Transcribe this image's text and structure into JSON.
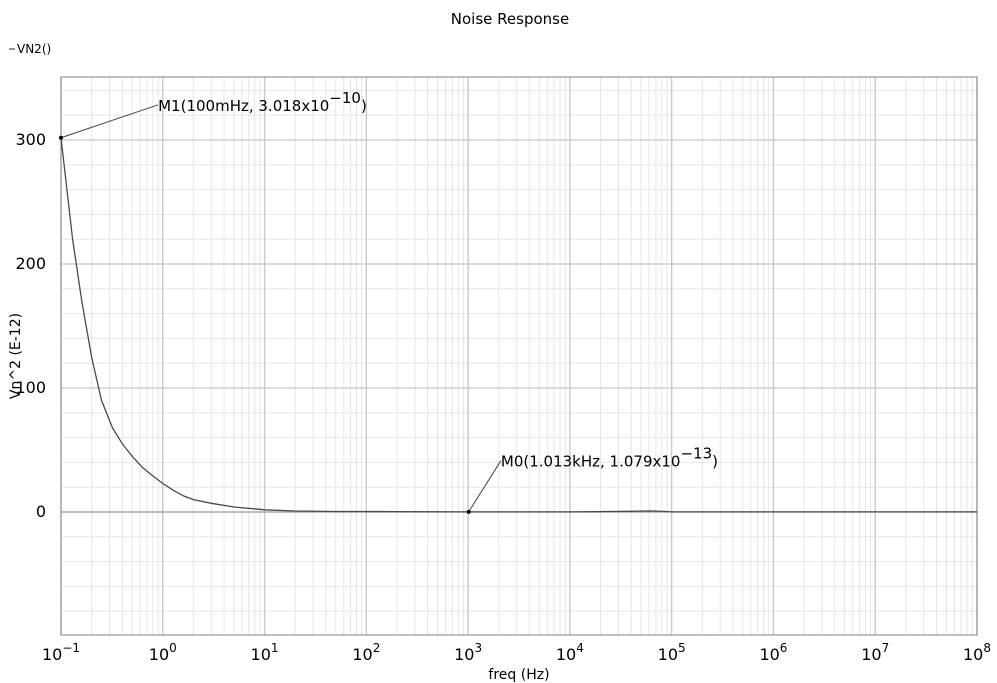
{
  "chart_data": {
    "type": "line",
    "title": "Noise Response",
    "xlabel": "freq (Hz)",
    "ylabel": "Vn^2 (E-12)",
    "x_scale": "log",
    "xlim": [
      0.1,
      100000000
    ],
    "ylim": [
      -100,
      350
    ],
    "grid": true,
    "legend_position": "top-left",
    "x_tick_labels": [
      {
        "base": "10",
        "exp": "−1"
      },
      {
        "base": "10",
        "exp": "0"
      },
      {
        "base": "10",
        "exp": "1"
      },
      {
        "base": "10",
        "exp": "2"
      },
      {
        "base": "10",
        "exp": "3"
      },
      {
        "base": "10",
        "exp": "4"
      },
      {
        "base": "10",
        "exp": "5"
      },
      {
        "base": "10",
        "exp": "6"
      },
      {
        "base": "10",
        "exp": "7"
      },
      {
        "base": "10",
        "exp": "8"
      }
    ],
    "y_tick_labels": [
      "300",
      "200",
      "100",
      "0"
    ],
    "series": [
      {
        "name": "VN2()",
        "color": "#4a4a4a",
        "points": [
          [
            0.1,
            301.8
          ],
          [
            0.13,
            220
          ],
          [
            0.16,
            170
          ],
          [
            0.2,
            125
          ],
          [
            0.25,
            90
          ],
          [
            0.32,
            68
          ],
          [
            0.4,
            55
          ],
          [
            0.5,
            45
          ],
          [
            0.63,
            36
          ],
          [
            0.8,
            29
          ],
          [
            1.0,
            23
          ],
          [
            1.3,
            17
          ],
          [
            1.6,
            13
          ],
          [
            2,
            10
          ],
          [
            3,
            7
          ],
          [
            5,
            4
          ],
          [
            10,
            1.8
          ],
          [
            20,
            0.8
          ],
          [
            50,
            0.4
          ],
          [
            200,
            0.3
          ],
          [
            1000,
            0.108
          ],
          [
            10000,
            0.1
          ],
          [
            40000,
            0.6
          ],
          [
            60000,
            0.9
          ],
          [
            90000,
            0.4
          ],
          [
            100000,
            0.1
          ],
          [
            100000000,
            0.05
          ]
        ]
      }
    ],
    "markers": [
      {
        "name": "M1",
        "x": 0.1,
        "y": 301.8,
        "label": "M1(100mHz, 3.018x10",
        "exp": "−10",
        "close": ")",
        "label_x": 0.9,
        "label_y": 330
      },
      {
        "name": "M0",
        "x": 1013,
        "y": 0.1079,
        "label": "M0(1.013kHz, 1.079x10",
        "exp": "−13",
        "close": ")",
        "label_x": 2100,
        "label_y": 43
      }
    ]
  }
}
